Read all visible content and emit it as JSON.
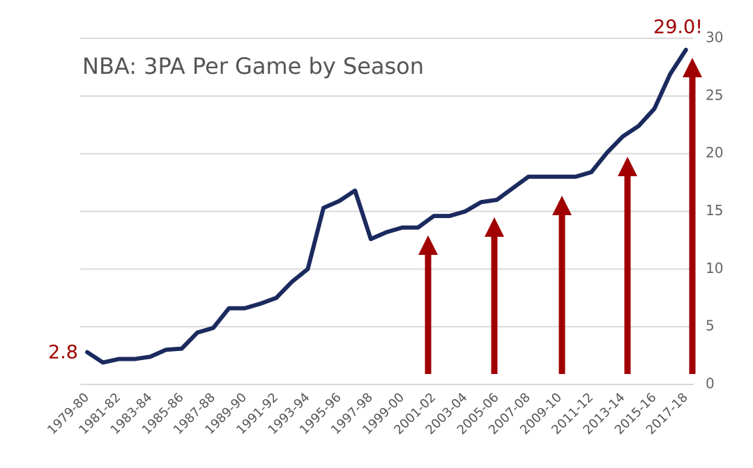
{
  "chart_data": {
    "type": "line",
    "title": "NBA: 3PA Per Game by Season",
    "categories": [
      "1979-80",
      null,
      "1981-82",
      null,
      "1983-84",
      null,
      "1985-86",
      null,
      "1987-88",
      null,
      "1989-90",
      null,
      "1991-92",
      null,
      "1993-94",
      null,
      "1995-96",
      null,
      "1997-98",
      null,
      "1999-00",
      null,
      "2001-02",
      null,
      "2003-04",
      null,
      "2005-06",
      null,
      "2007-08",
      null,
      "2009-10",
      null,
      "2011-12",
      null,
      "2013-14",
      null,
      "2015-16",
      null,
      "2017-18"
    ],
    "series": [
      {
        "color": "#1b2a5e",
        "values": [
          2.8,
          1.9,
          2.2,
          2.2,
          2.4,
          3.0,
          3.1,
          4.5,
          4.9,
          6.6,
          6.6,
          7.0,
          7.5,
          8.9,
          10.0,
          15.3,
          15.9,
          16.8,
          12.6,
          13.2,
          13.6,
          13.6,
          14.6,
          14.6,
          15.0,
          15.8,
          16.0,
          17.0,
          18.0,
          18.0,
          18.0,
          18.0,
          18.4,
          20.1,
          21.5,
          22.4,
          23.9,
          26.9,
          29.0
        ]
      }
    ],
    "annotations": [
      "2.8",
      "29.0!"
    ],
    "ylim": [
      0,
      30
    ],
    "yticks": [
      0,
      5,
      10,
      15,
      20,
      25,
      30
    ],
    "grid": true
  }
}
